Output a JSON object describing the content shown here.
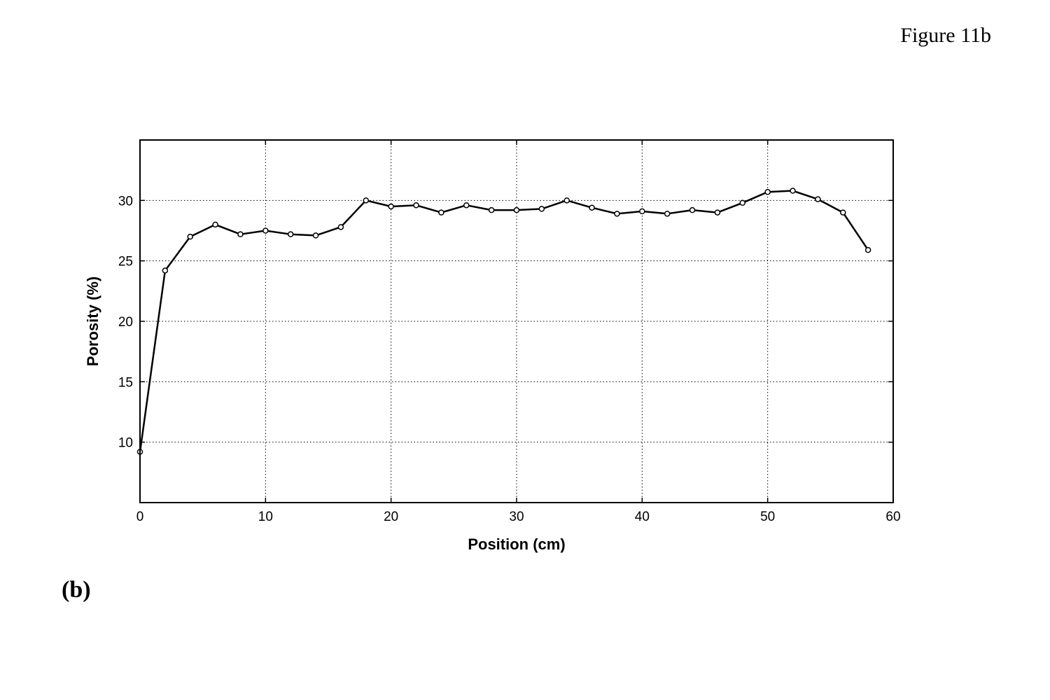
{
  "figure_label": "Figure 11b",
  "panel_label": "(b)",
  "chart_data": {
    "type": "line",
    "title": "",
    "xlabel": "Position (cm)",
    "ylabel": "Porosity (%)",
    "xlim": [
      0,
      60
    ],
    "ylim": [
      5,
      35
    ],
    "xticks": [
      0,
      10,
      20,
      30,
      40,
      50,
      60
    ],
    "yticks": [
      10,
      15,
      20,
      25,
      30
    ],
    "grid": true,
    "marker": "circle",
    "line_color": "#000000",
    "series": [
      {
        "x": [
          0,
          2,
          4,
          6,
          8,
          10,
          12,
          14,
          16,
          18,
          20,
          22,
          24,
          26,
          28,
          30,
          32,
          34,
          36,
          38,
          40,
          42,
          44,
          46,
          48,
          50,
          52,
          54,
          56,
          58
        ],
        "y": [
          9.2,
          24.2,
          27.0,
          28.0,
          27.2,
          27.5,
          27.2,
          27.1,
          27.8,
          30.0,
          29.5,
          29.6,
          29.0,
          29.6,
          29.2,
          29.2,
          29.3,
          30.0,
          29.4,
          28.9,
          29.1,
          28.9,
          29.2,
          29.0,
          29.8,
          30.7,
          30.8,
          30.1,
          29.0,
          25.9
        ]
      }
    ]
  }
}
